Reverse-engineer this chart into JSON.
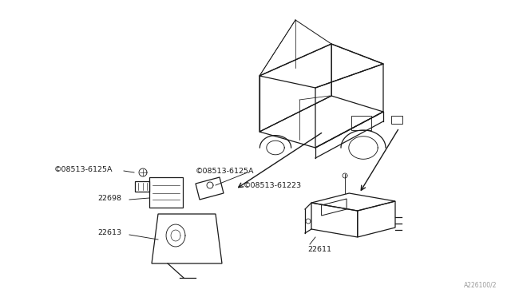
{
  "bg_color": "#ffffff",
  "line_color": "#1a1a1a",
  "watermark": "A226100/2",
  "parts": {
    "label_08513_61223": "©08513-61223",
    "label_08513_6125A_left": "©08513-6125A",
    "label_08513_6125A_right": "©08513-6125A",
    "label_22698": "22698",
    "label_22613": "22613",
    "label_22611": "22611"
  }
}
